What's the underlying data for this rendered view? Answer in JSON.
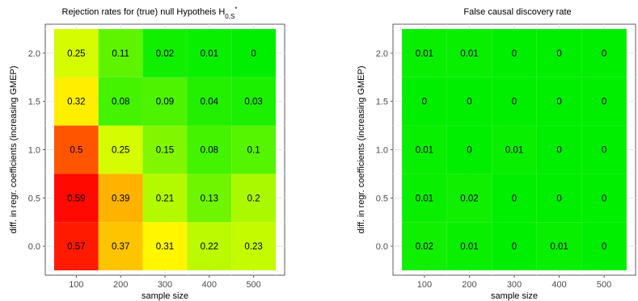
{
  "chart_data": [
    {
      "type": "heatmap",
      "title": "Rejection rates for (true) null Hypotheis H",
      "title_sub": "0,S",
      "title_sup": "*",
      "xlabel": "sample size",
      "ylabel": "diff. in regr. coefficients (increasing GMEP)",
      "x": [
        100,
        200,
        300,
        400,
        500
      ],
      "x_ticks": [
        "100",
        "200",
        "300",
        "400",
        "500"
      ],
      "y": [
        0.0,
        0.5,
        1.0,
        1.5,
        2.0
      ],
      "y_ticks": [
        "0.0",
        "0.5",
        "1.0",
        "1.5",
        "2.0"
      ],
      "values": [
        [
          0.57,
          0.37,
          0.31,
          0.22,
          0.23
        ],
        [
          0.59,
          0.39,
          0.21,
          0.13,
          0.2
        ],
        [
          0.5,
          0.25,
          0.15,
          0.08,
          0.1
        ],
        [
          0.32,
          0.08,
          0.09,
          0.04,
          0.03
        ],
        [
          0.25,
          0.11,
          0.02,
          0.01,
          0
        ]
      ],
      "color_scale": [
        "#00ee00",
        "#ffff00",
        "#ff0000"
      ],
      "color_range": [
        0,
        0.6
      ],
      "grid": true,
      "legend": "none"
    },
    {
      "type": "heatmap",
      "title": "False causal discovery rate",
      "xlabel": "sample size",
      "ylabel": "diff. in regr. coefficients (increasing GMEP)",
      "x": [
        100,
        200,
        300,
        400,
        500
      ],
      "x_ticks": [
        "100",
        "200",
        "300",
        "400",
        "500"
      ],
      "y": [
        0.0,
        0.5,
        1.0,
        1.5,
        2.0
      ],
      "y_ticks": [
        "0.0",
        "0.5",
        "1.0",
        "1.5",
        "2.0"
      ],
      "values": [
        [
          0.02,
          0.01,
          0,
          0.01,
          0
        ],
        [
          0.01,
          0.02,
          0,
          0,
          0
        ],
        [
          0.01,
          0,
          0.01,
          0,
          0
        ],
        [
          0,
          0,
          0,
          0,
          0
        ],
        [
          0.01,
          0.01,
          0,
          0,
          0
        ]
      ],
      "color_scale": [
        "#00ee00",
        "#ffff00",
        "#ff0000"
      ],
      "color_range": [
        0,
        0.6
      ],
      "grid": true,
      "legend": "none"
    }
  ]
}
